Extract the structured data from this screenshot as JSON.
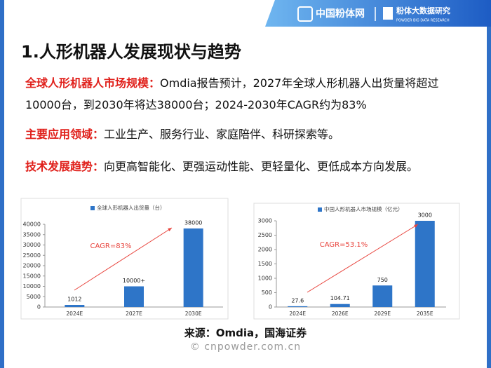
{
  "header": {
    "logo": "中国粉体网",
    "brand": "粉体大数据研究",
    "brand_en": "POWDER BIG DATA RESEARCH"
  },
  "title": "1.人形机器人发展现状与趋势",
  "paragraphs": [
    {
      "label": "全球人形机器人市场规模：",
      "text": "Omdia报告预计，2027年全球人形机器人出货量将超过10000台，到2030年将达38000台；2024-2030年CAGR约为83%"
    },
    {
      "label": "主要应用领域：",
      "text": "工业生产、服务行业、家庭陪伴、科研探索等。"
    },
    {
      "label": "技术发展趋势：",
      "text": "向更高智能化、更强运动性能、更轻量化、更低成本方向发展。"
    }
  ],
  "chart_data": [
    {
      "type": "bar",
      "title": "全球人形机器人出货量（台）",
      "categories": [
        "2024E",
        "2027E",
        "2030E"
      ],
      "values": [
        1012,
        10000,
        38000
      ],
      "value_labels": [
        "1012",
        "10000+",
        "38000"
      ],
      "color": "#2e75c8",
      "ylim": [
        0,
        40000
      ],
      "yticks": [
        0,
        5000,
        10000,
        15000,
        20000,
        25000,
        30000,
        35000,
        40000
      ],
      "annotation": "CAGR=83%"
    },
    {
      "type": "bar",
      "title": "中国人形机器人市场规模（亿元）",
      "categories": [
        "2024E",
        "2026E",
        "2029E",
        "2035E"
      ],
      "values": [
        27.6,
        104.71,
        750,
        3000
      ],
      "color": "#2e75c8",
      "ylim": [
        0,
        3000
      ],
      "yticks": [
        0,
        500,
        1000,
        1500,
        2000,
        2500,
        3000
      ],
      "annotation": "CAGR=53.1%"
    }
  ],
  "source": "来源：Omdia，国海证券",
  "watermark": "© cnpowder.com.cn"
}
